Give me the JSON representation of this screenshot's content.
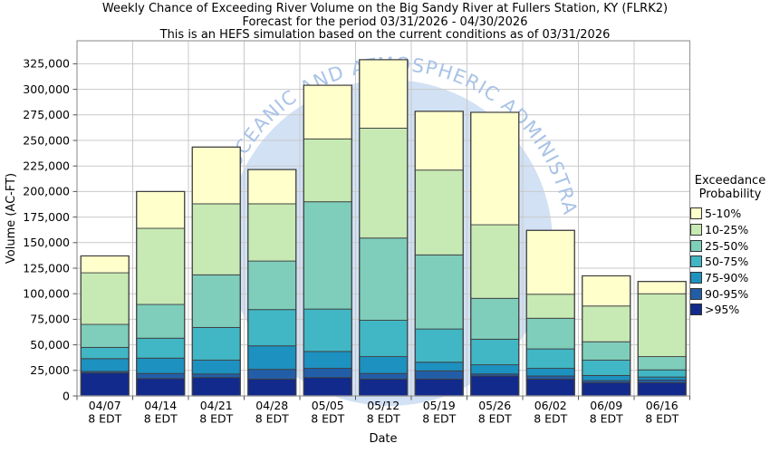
{
  "title": {
    "line1": "Weekly Chance of Exceeding River Volume on the Big Sandy River at Fullers Station, KY (FLRK2)",
    "line2": "Forecast for the period 03/31/2026 - 04/30/2026",
    "line3": "This is an HEFS simulation based on the current conditions as of 03/31/2026"
  },
  "watermark_text": "OCEANIC AND ATMOSPHERIC ADMINISTRATION",
  "colors": {
    "watermark_fill": "#d2e1f4",
    "watermark_text": "#a9c3e6",
    "grid": "#c9c9c9",
    "plot_border": "#9b9b9b",
    "bar_stroke": "#404040",
    "tick": "#555555"
  },
  "chart_data": {
    "type": "bar",
    "stacked": true,
    "title": "Weekly Chance of Exceeding River Volume on the Big Sandy River at Fullers Station, KY (FLRK2)",
    "xlabel": "Date",
    "ylabel": "Volume (AC-FT)",
    "ylim": [
      0,
      347500
    ],
    "grid": true,
    "legend_position": "right",
    "yticks": [
      0,
      25000,
      50000,
      75000,
      100000,
      125000,
      150000,
      175000,
      200000,
      225000,
      250000,
      275000,
      300000,
      325000
    ],
    "categories": [
      {
        "date": "04/07",
        "time": "8 EDT"
      },
      {
        "date": "04/14",
        "time": "8 EDT"
      },
      {
        "date": "04/21",
        "time": "8 EDT"
      },
      {
        "date": "04/28",
        "time": "8 EDT"
      },
      {
        "date": "05/05",
        "time": "8 EDT"
      },
      {
        "date": "05/12",
        "time": "8 EDT"
      },
      {
        "date": "05/19",
        "time": "8 EDT"
      },
      {
        "date": "05/26",
        "time": "8 EDT"
      },
      {
        "date": "06/02",
        "time": "8 EDT"
      },
      {
        "date": "06/09",
        "time": "8 EDT"
      },
      {
        "date": "06/16",
        "time": "8 EDT"
      }
    ],
    "series": [
      {
        "name": ">95%",
        "color": "#122a8c",
        "values": [
          22500,
          17000,
          18000,
          16500,
          18000,
          16500,
          16500,
          19500,
          16500,
          13000,
          13000
        ]
      },
      {
        "name": "90-95%",
        "color": "#225ea8",
        "values": [
          1500,
          5000,
          3500,
          9500,
          9000,
          5500,
          8000,
          2000,
          3000,
          2000,
          2500
        ]
      },
      {
        "name": "75-90%",
        "color": "#1d91c0",
        "values": [
          12500,
          15000,
          13500,
          23000,
          16500,
          16500,
          8500,
          9000,
          7500,
          5000,
          3000
        ]
      },
      {
        "name": "50-75%",
        "color": "#41b6c4",
        "values": [
          11000,
          19500,
          32000,
          35500,
          41500,
          35500,
          32500,
          25000,
          19000,
          15000,
          7000
        ]
      },
      {
        "name": "25-50%",
        "color": "#7fcdbb",
        "values": [
          22500,
          33000,
          51500,
          47500,
          105000,
          80500,
          72500,
          40000,
          30000,
          18000,
          13000
        ]
      },
      {
        "name": "10-25%",
        "color": "#c7e9b4",
        "values": [
          50500,
          74500,
          69500,
          56000,
          61500,
          107500,
          83000,
          72000,
          23500,
          35000,
          61500
        ]
      },
      {
        "name": "5-10%",
        "color": "#ffffcc",
        "values": [
          16500,
          36000,
          55500,
          33500,
          52500,
          67000,
          57500,
          110000,
          62500,
          29500,
          12000
        ]
      }
    ],
    "totals": [
      137000,
      200000,
      243500,
      221500,
      304000,
      329000,
      278500,
      277500,
      162000,
      117500,
      112000
    ],
    "legend": {
      "title_line1": "Exceedance",
      "title_line2": "Probability",
      "items": [
        {
          "label": "5-10%",
          "color": "#ffffcc"
        },
        {
          "label": "10-25%",
          "color": "#c7e9b4"
        },
        {
          "label": "25-50%",
          "color": "#7fcdbb"
        },
        {
          "label": "50-75%",
          "color": "#41b6c4"
        },
        {
          "label": "75-90%",
          "color": "#1d91c0"
        },
        {
          "label": "90-95%",
          "color": "#225ea8"
        },
        {
          "label": ">95%",
          "color": "#122a8c"
        }
      ]
    }
  }
}
